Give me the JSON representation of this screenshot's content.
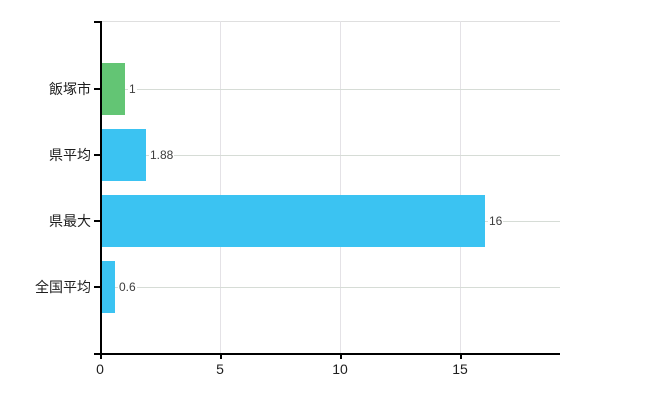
{
  "chart_data": {
    "type": "bar",
    "orientation": "horizontal",
    "title": "",
    "xlabel": "",
    "ylabel": "",
    "categories": [
      "飯塚市",
      "県平均",
      "県最大",
      "全国平均"
    ],
    "values": [
      1,
      1.88,
      16,
      0.6
    ],
    "value_labels": [
      "1",
      "1.88",
      "16",
      "0.6"
    ],
    "bar_colors": [
      "#63c574",
      "#3bc3f2",
      "#3bc3f2",
      "#3bc3f2"
    ],
    "x_ticks": [
      0,
      5,
      10,
      15
    ],
    "x_tick_labels": [
      "0",
      "5",
      "10",
      "15"
    ],
    "xlim": [
      0,
      19.2
    ],
    "grid": true,
    "legend": false
  },
  "colors": {
    "background": "#ffffff",
    "bar_blue": "#3bc3f2",
    "bar_green": "#63c574",
    "axis": "#000000",
    "grid_horizontal": "#d6dcd6",
    "grid_vertical": "#e4e2e6",
    "tick_label_text": "#1e1e1e",
    "value_label_text": "#3d3d3d"
  }
}
